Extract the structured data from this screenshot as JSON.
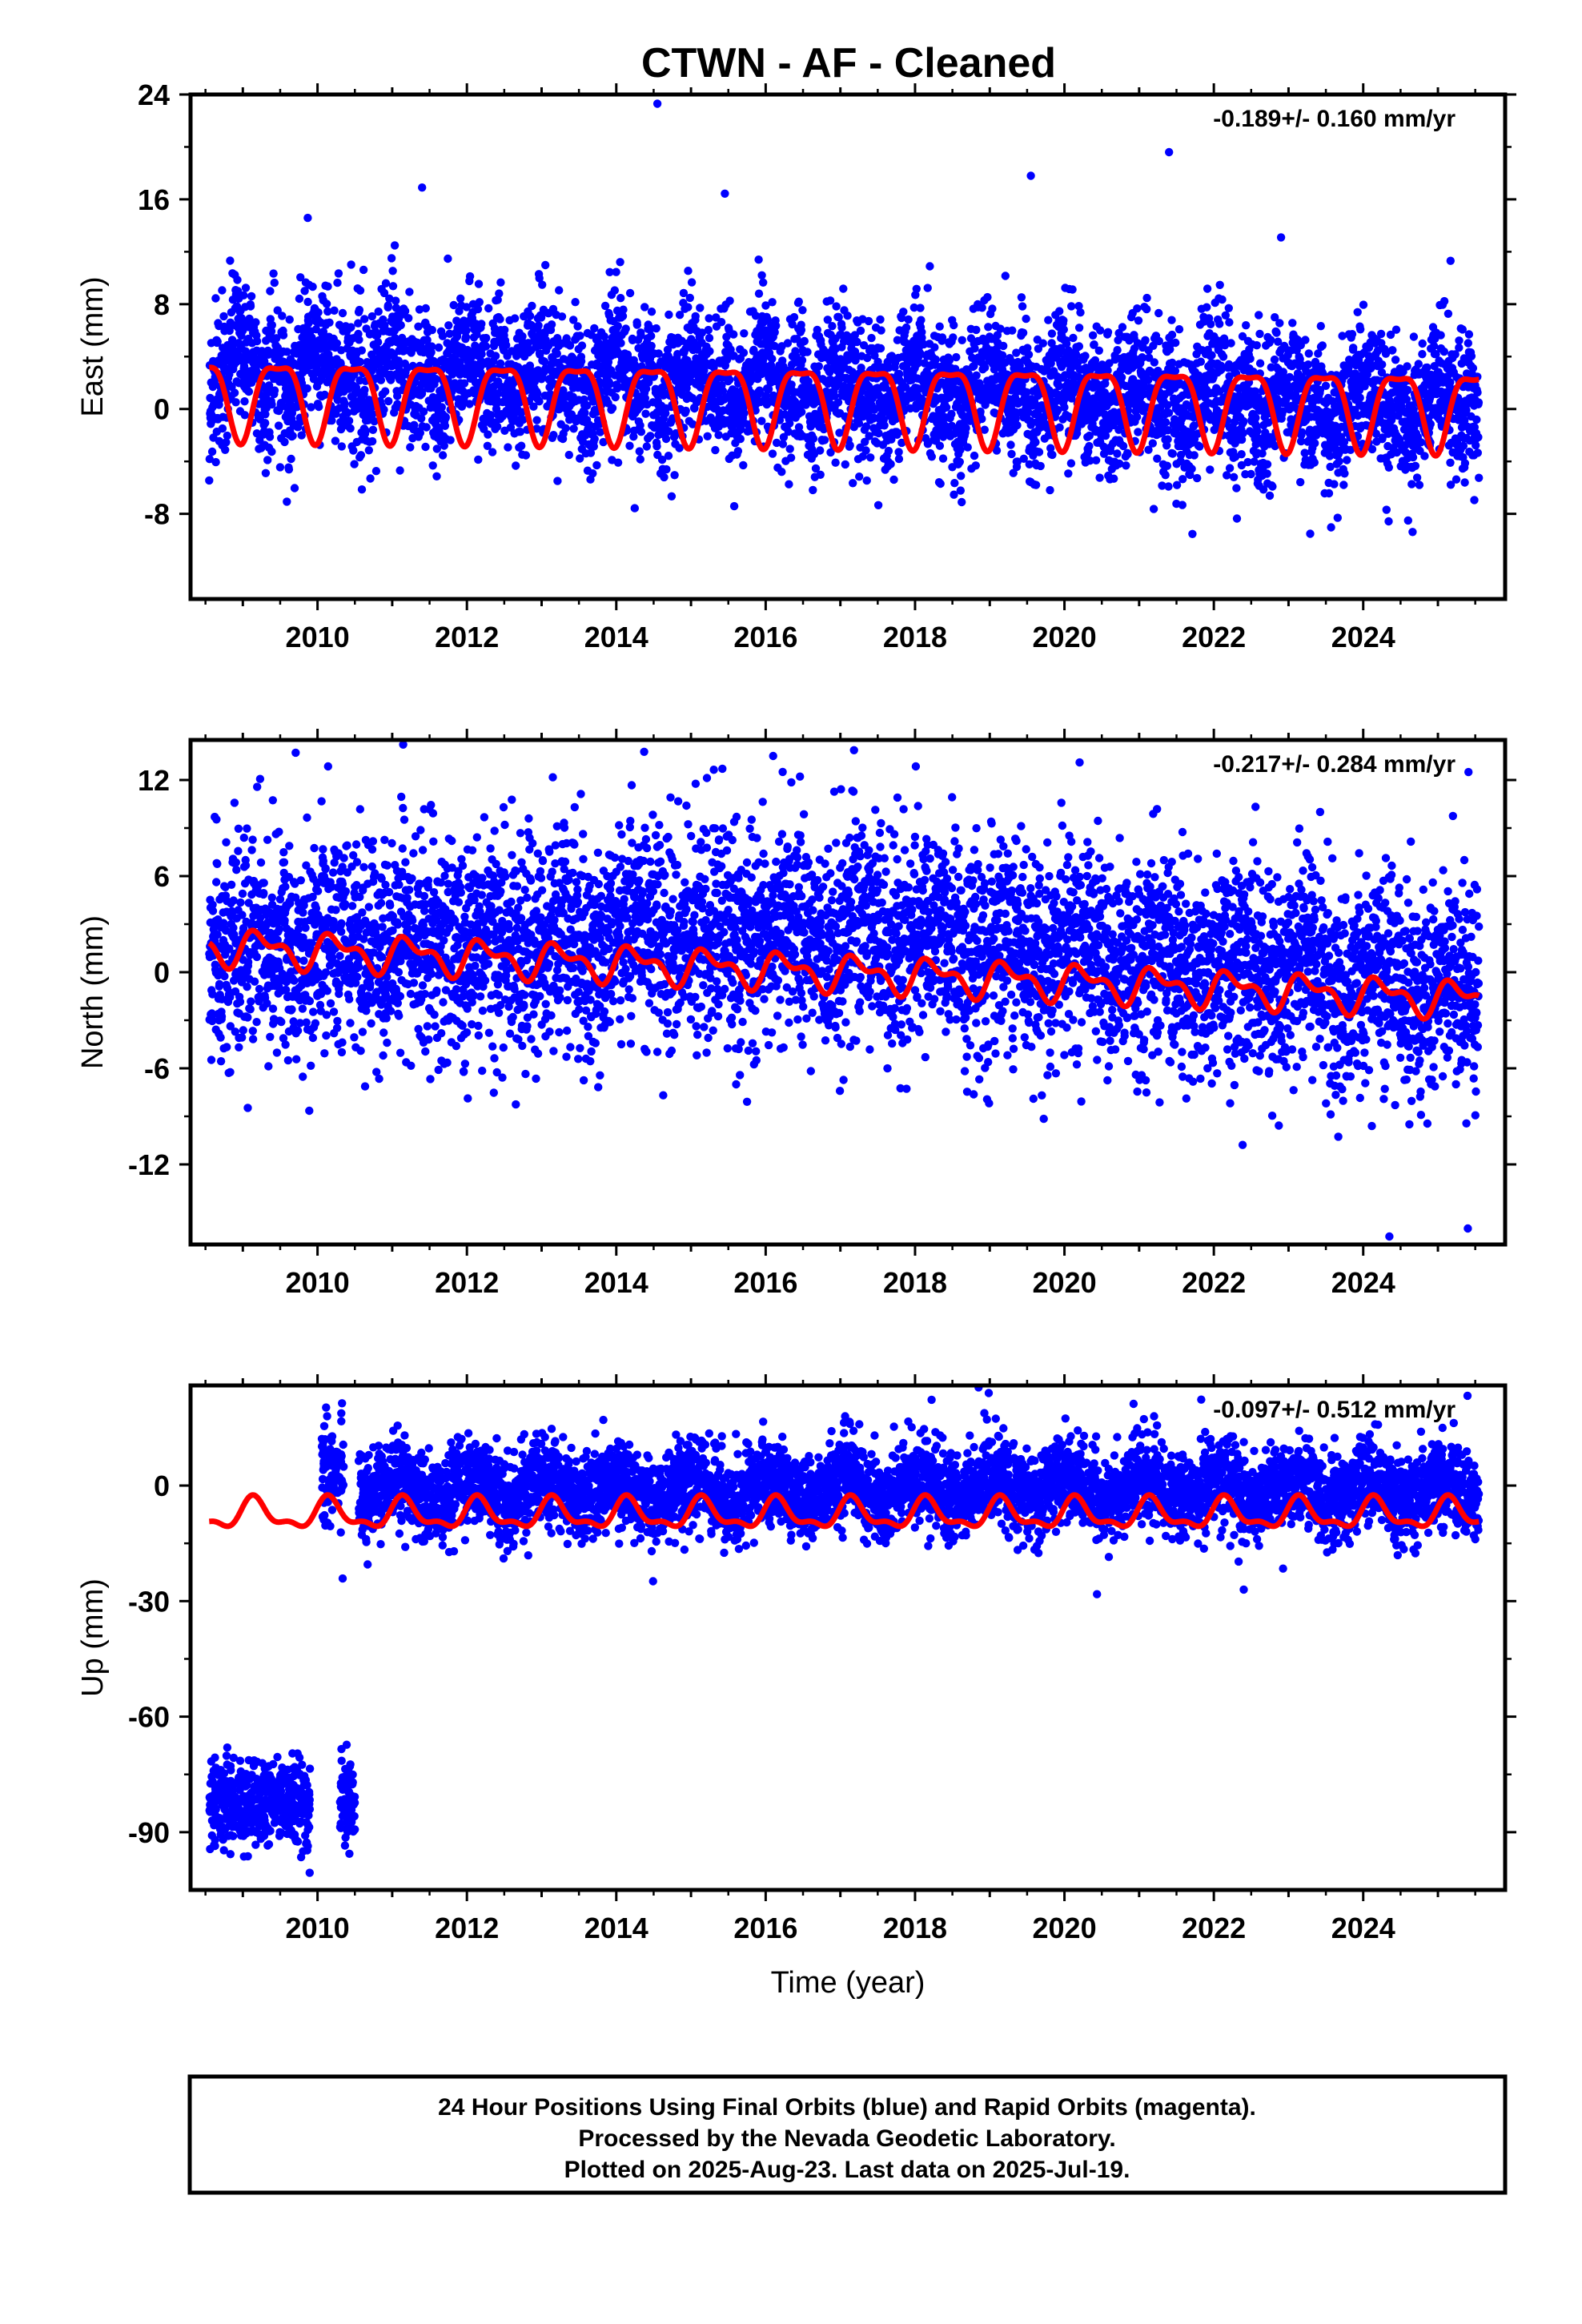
{
  "title": "CTWN  - AF - Cleaned",
  "footer": {
    "lines": [
      "24 Hour Positions Using Final Orbits (blue) and Rapid Orbits (magenta).",
      "Processed by the Nevada Geodetic Laboratory.",
      "Plotted on 2025-Aug-23. Last data on 2025-Jul-19."
    ]
  },
  "colors": {
    "points": "#0000ff",
    "fit": "#ff0000",
    "frame": "#000000"
  },
  "chart_data": [
    {
      "type": "scatter",
      "ylabel": "East (mm)",
      "xlabel": "",
      "rate_label": "-0.189+/- 0.160 mm/yr",
      "xlim": [
        2008.3,
        2025.9
      ],
      "ylim": [
        -14.5,
        24
      ],
      "x_ticks": [
        "2010",
        "2012",
        "2014",
        "2016",
        "2018",
        "2020",
        "2022",
        "2024"
      ],
      "y_ticks": [
        "-8",
        "0",
        "8",
        "16",
        "24"
      ],
      "series": [
        {
          "role": "daily positions",
          "x_range": [
            2008.55,
            2025.55
          ],
          "spread_mm": 2.6,
          "outliers_max": 23.5,
          "seasonal_amplitude": 2.4,
          "seasonal_phase": 0.25,
          "offset": 1.2,
          "trend": -0.189
        },
        {
          "role": "model fit",
          "x_range": [
            2008.55,
            2025.55
          ],
          "seasonal_amplitude": 2.9,
          "annual_shape": "sharp",
          "offset_start": 4.6,
          "offset_end": 1.0
        }
      ]
    },
    {
      "type": "scatter",
      "ylabel": "North (mm)",
      "xlabel": "",
      "rate_label": "-0.217+/- 0.284 mm/yr",
      "xlim": [
        2008.3,
        2025.9
      ],
      "ylim": [
        -17,
        14.5
      ],
      "x_ticks": [
        "2010",
        "2012",
        "2014",
        "2016",
        "2018",
        "2020",
        "2022",
        "2024"
      ],
      "y_ticks": [
        "-12",
        "-6",
        "0",
        "6",
        "12"
      ],
      "series": [
        {
          "role": "daily positions",
          "x_range": [
            2008.55,
            2025.55
          ],
          "spread_mm": 3.3,
          "outliers_max": 13.5,
          "seasonal_amplitude": 0.8,
          "offset": 1.5,
          "trend": -0.217
        },
        {
          "role": "model fit",
          "x_range": [
            2008.55,
            2025.55
          ],
          "seasonal_amplitude": 1.0,
          "semiannual_amplitude": 0.6,
          "offset_start": 2.3,
          "offset_end": -2.0
        }
      ]
    },
    {
      "type": "scatter",
      "ylabel": "Up (mm)",
      "xlabel": "Time (year)",
      "rate_label": "-0.097+/- 0.512 mm/yr",
      "xlim": [
        2008.3,
        2025.9
      ],
      "ylim": [
        -105,
        26
      ],
      "x_ticks": [
        "2010",
        "2012",
        "2014",
        "2016",
        "2018",
        "2020",
        "2022",
        "2024"
      ],
      "y_ticks": [
        "-90",
        "-60",
        "-30",
        "0"
      ],
      "series": [
        {
          "role": "daily positions (pre-2010)",
          "x_range": [
            2008.55,
            2010.5
          ],
          "center_mm": -82,
          "spread_mm": 5.5
        },
        {
          "role": "daily positions (2010 jump)",
          "x_range": [
            2010.05,
            2010.35
          ],
          "center_mm": 5,
          "spread_mm": 8
        },
        {
          "role": "daily positions",
          "x_range": [
            2010.55,
            2025.55
          ],
          "center_mm": -1,
          "spread_mm": 5.5,
          "seasonal_amplitude": 3
        },
        {
          "role": "model fit",
          "x_range": [
            2008.55,
            2025.55
          ],
          "seasonal_amplitude": 4.0,
          "offset": -7.5
        }
      ]
    }
  ]
}
